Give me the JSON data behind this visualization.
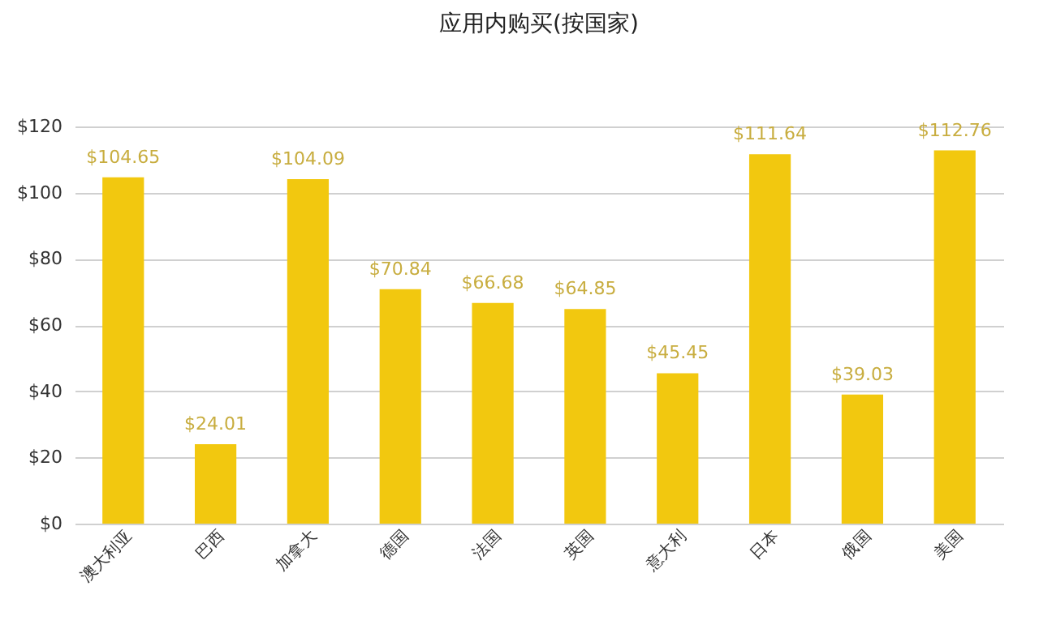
{
  "chart_data": {
    "type": "bar",
    "title": "应用内购买(按国家)",
    "categories": [
      "澳大利亚",
      "巴西",
      "加拿大",
      "德国",
      "法国",
      "英国",
      "意大利",
      "日本",
      "俄国",
      "美国"
    ],
    "values": [
      104.65,
      24.01,
      104.09,
      70.84,
      66.68,
      64.85,
      45.45,
      111.64,
      39.03,
      112.76
    ],
    "value_labels": [
      "$104.65",
      "$24.01",
      "$104.09",
      "$70.84",
      "$66.68",
      "$64.85",
      "$45.45",
      "$111.64",
      "$39.03",
      "$112.76"
    ],
    "color": "#f2c80f",
    "ylim": [
      0,
      120
    ],
    "yticks": [
      {
        "value": 0,
        "label": "$0"
      },
      {
        "value": 20,
        "label": "$20"
      },
      {
        "value": 40,
        "label": "$40"
      },
      {
        "value": 60,
        "label": "$60"
      },
      {
        "value": 80,
        "label": "$80"
      },
      {
        "value": 100,
        "label": "$100"
      },
      {
        "value": 120,
        "label": "$120"
      }
    ],
    "grid": "y"
  }
}
